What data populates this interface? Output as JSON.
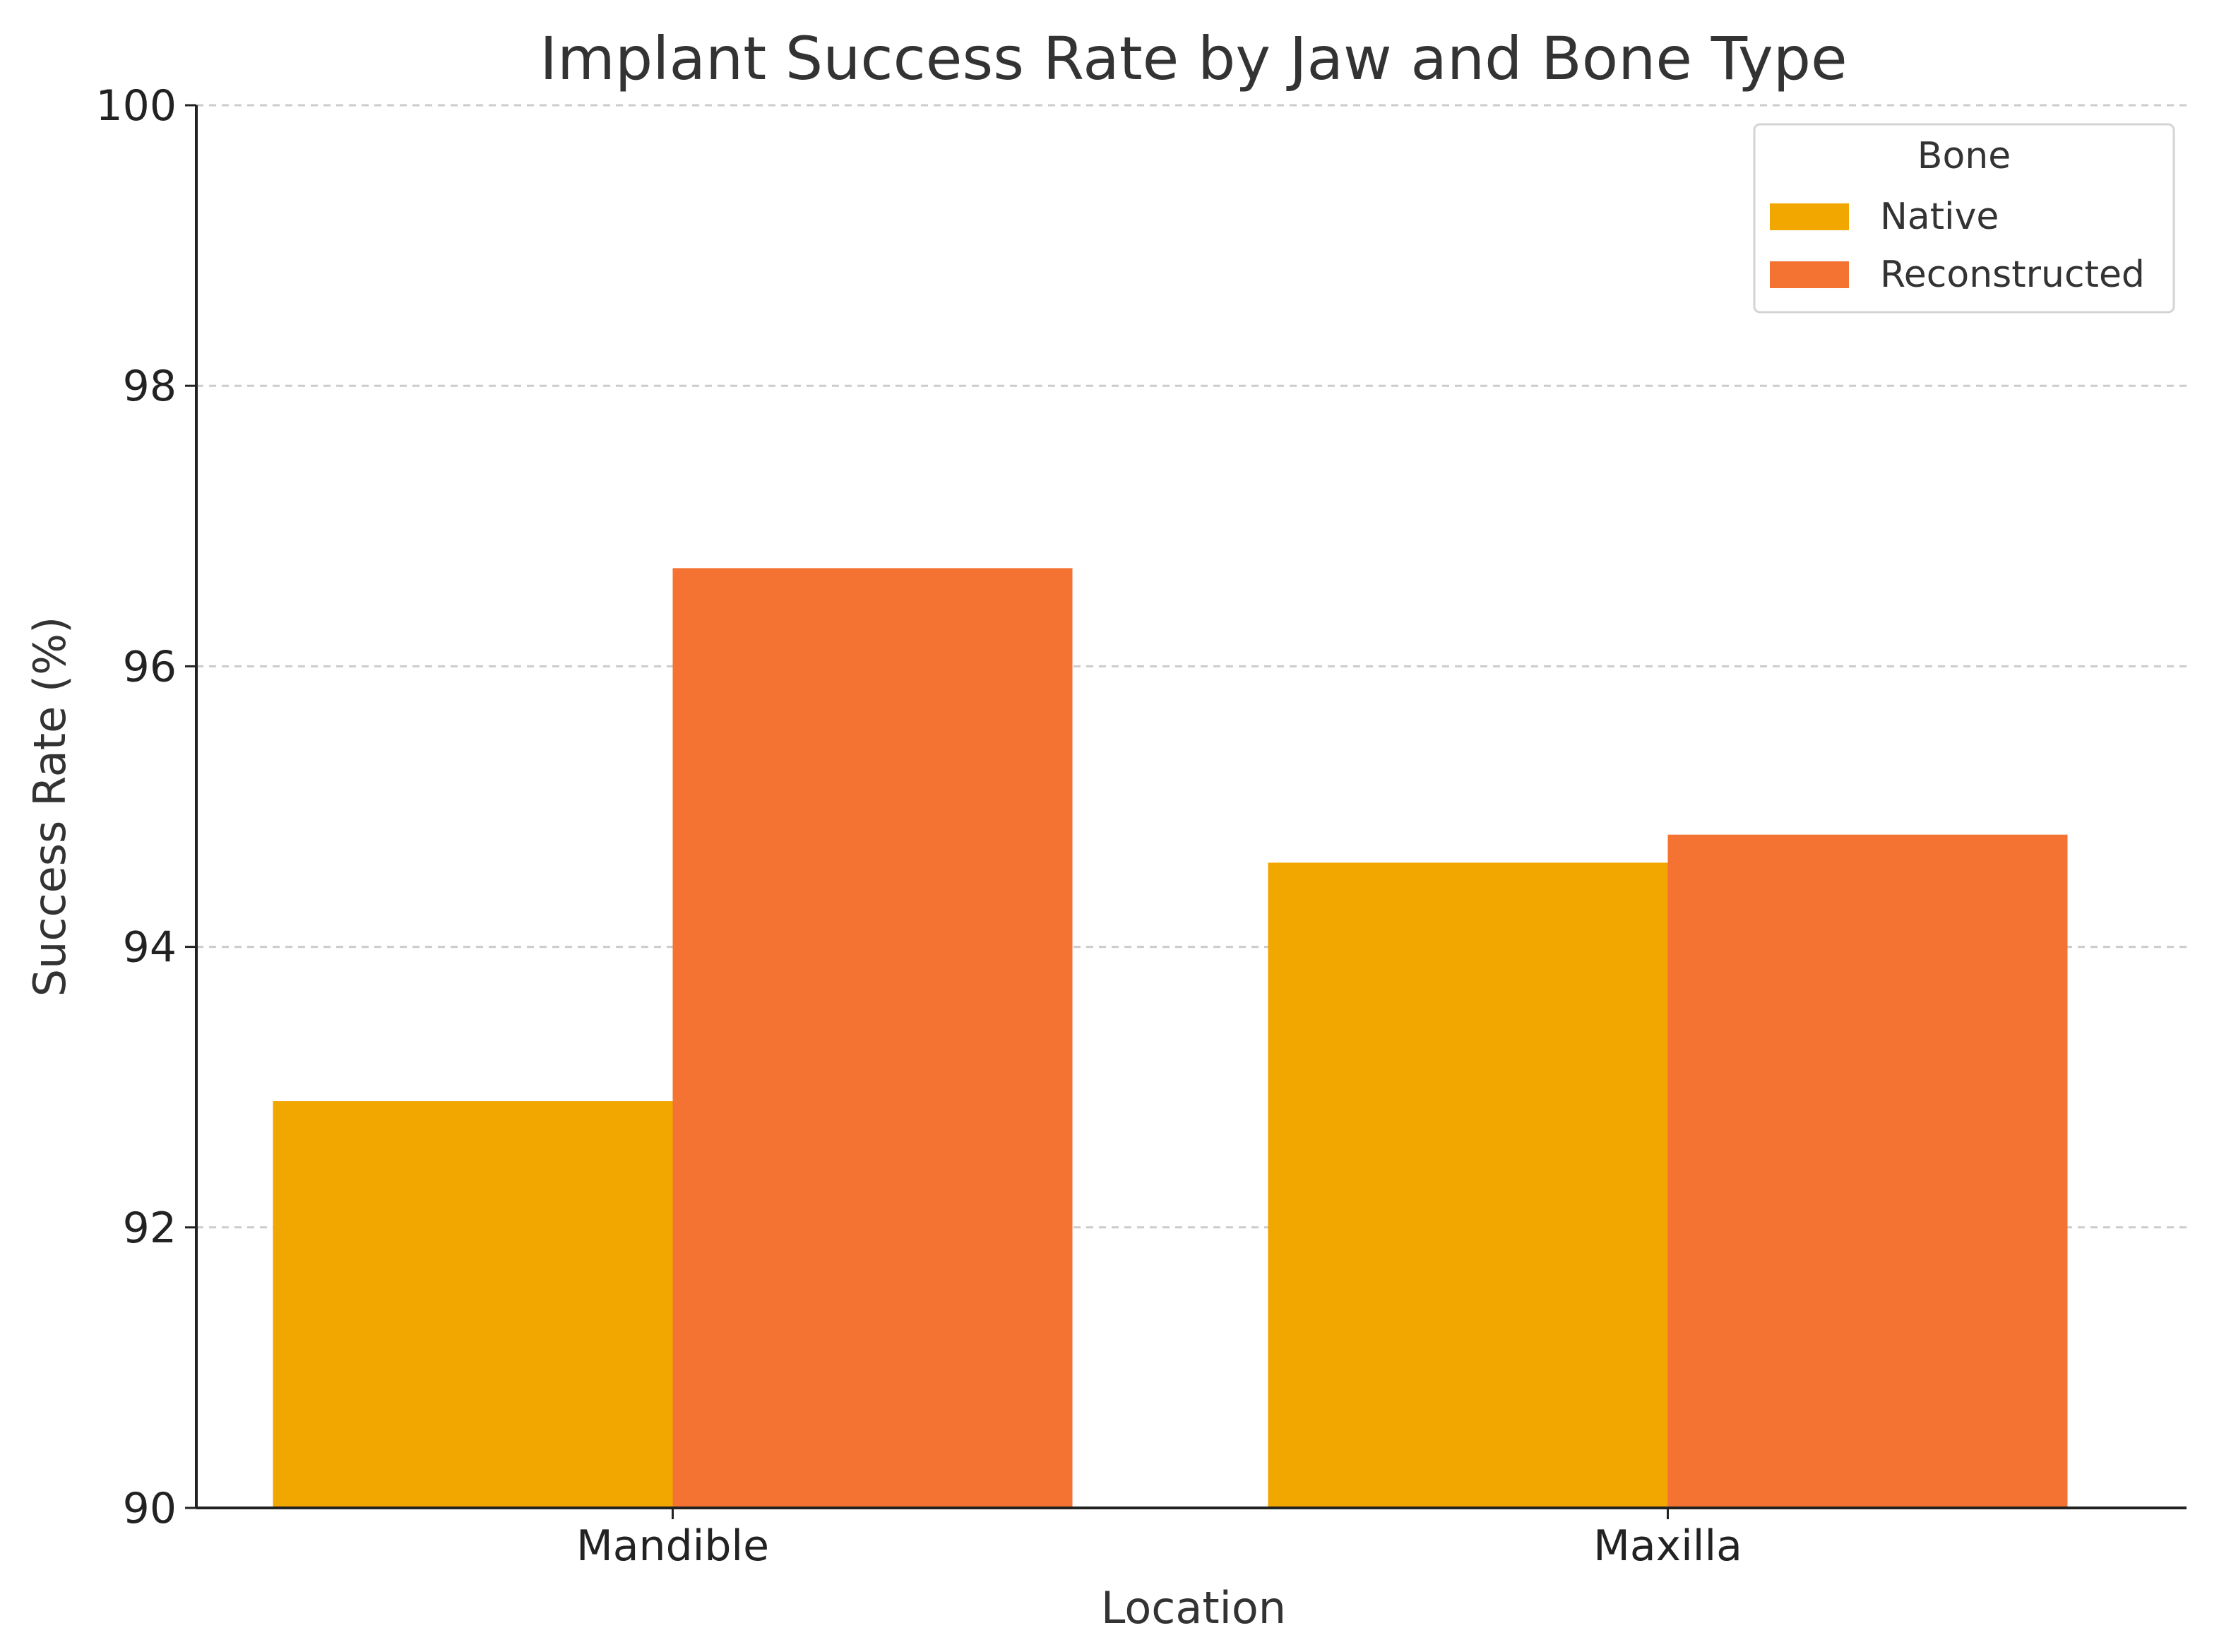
{
  "chart_data": {
    "type": "bar",
    "title": "Implant Success Rate by Jaw and Bone Type",
    "xlabel": "Location",
    "ylabel": "Success Rate (%)",
    "categories": [
      "Mandible",
      "Maxilla"
    ],
    "series": [
      {
        "name": "Native",
        "values": [
          92.9,
          94.6
        ],
        "color": "#F2A600"
      },
      {
        "name": "Reconstructed",
        "values": [
          96.7,
          94.8
        ],
        "color": "#F47232"
      }
    ],
    "ylim": [
      90,
      100
    ],
    "yticks": [
      90,
      92,
      94,
      96,
      98,
      100
    ],
    "grid": true,
    "legend": {
      "title": "Bone",
      "position": "top-right"
    }
  }
}
